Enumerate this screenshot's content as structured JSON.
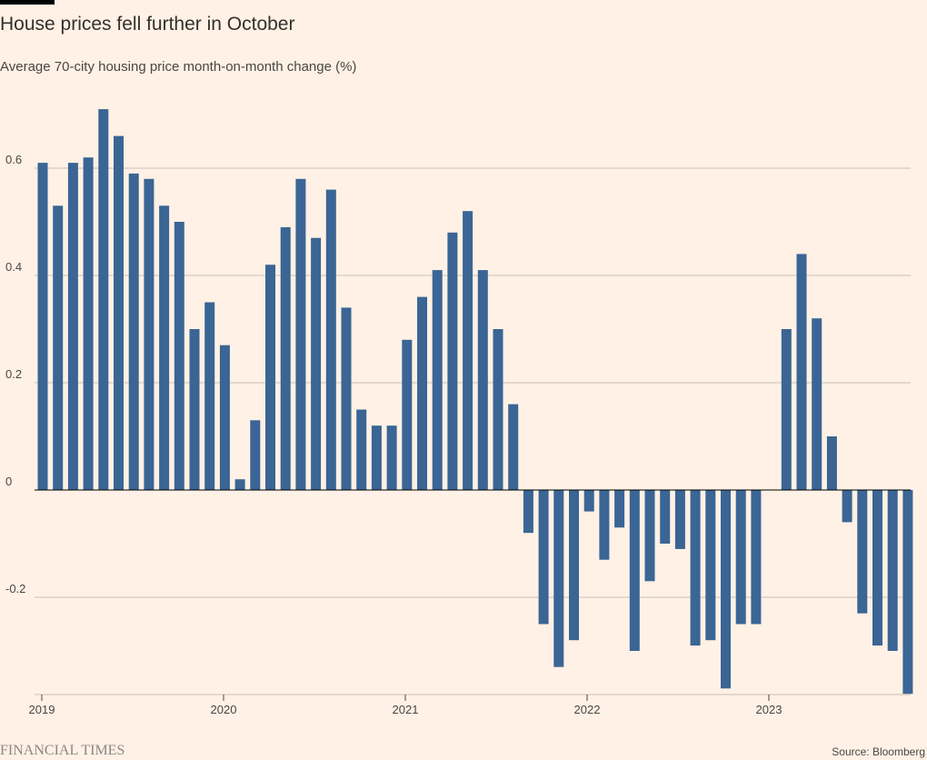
{
  "header": {
    "title": "House prices fell further in October",
    "subtitle": "Average 70-city housing price month-on-month change (%)"
  },
  "footer": {
    "logo_text": "FINANCIAL TIMES",
    "source": "Source: Bloomberg"
  },
  "colors": {
    "background": "#fff1e5",
    "bar": "#3a6595",
    "grid": "#c9bfb7",
    "text": "#33302e"
  },
  "chart_data": {
    "type": "bar",
    "title": "House prices fell further in October",
    "subtitle": "Average 70-city housing price month-on-month change (%)",
    "ylabel": "",
    "xlabel": "",
    "ylim": [
      -0.38,
      0.72
    ],
    "yticks": [
      0.6,
      0.4,
      0.2,
      0,
      -0.2
    ],
    "ytick_labels": [
      "0.6",
      "0.4",
      "0.2",
      "0",
      "-0.2"
    ],
    "xticks": [
      "2019",
      "2020",
      "2021",
      "2022",
      "2023"
    ],
    "grid": true,
    "start": "2019-01",
    "series": [
      {
        "values": [
          0.61,
          0.53,
          0.61,
          0.62,
          0.71,
          0.66,
          0.59,
          0.58,
          0.53,
          0.5,
          0.3,
          0.35,
          0.27,
          0.02,
          0.13,
          0.42,
          0.49,
          0.58,
          0.47,
          0.56,
          0.34,
          0.15,
          0.12,
          0.12,
          0.28,
          0.36,
          0.41,
          0.48,
          0.52,
          0.41,
          0.3,
          0.16,
          -0.08,
          -0.25,
          -0.33,
          -0.28,
          -0.04,
          -0.13,
          -0.07,
          -0.3,
          -0.17,
          -0.1,
          -0.11,
          -0.29,
          -0.28,
          -0.37,
          -0.25,
          -0.25,
          0.0,
          0.3,
          0.44,
          0.32,
          0.1,
          -0.06,
          -0.23,
          -0.29,
          -0.3,
          -0.38
        ]
      }
    ]
  }
}
